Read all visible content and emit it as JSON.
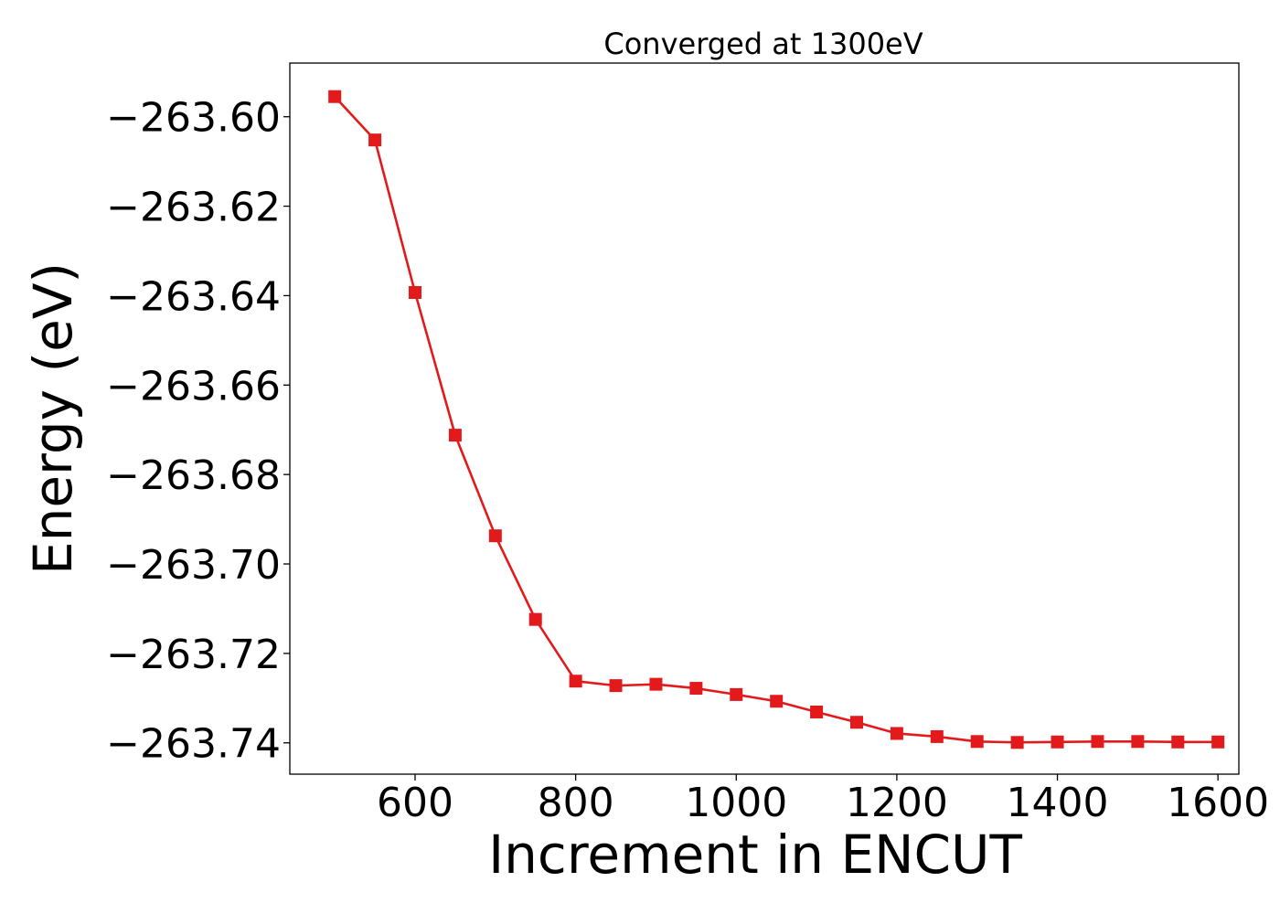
{
  "chart_data": {
    "type": "line",
    "title": "Converged at 1300eV",
    "xlabel": "Increment in ENCUT",
    "ylabel": "Energy (eV)",
    "xlim": [
      444,
      1626
    ],
    "ylim": [
      -263.747,
      -263.588
    ],
    "x_ticks": [
      600,
      800,
      1000,
      1200,
      1400,
      1600
    ],
    "x_tick_labels": [
      "600",
      "800",
      "1000",
      "1200",
      "1400",
      "1600"
    ],
    "y_ticks": [
      -263.6,
      -263.62,
      -263.64,
      -263.66,
      -263.68,
      -263.7,
      -263.72,
      -263.74
    ],
    "y_tick_labels": [
      "−263.60",
      "−263.62",
      "−263.64",
      "−263.66",
      "−263.68",
      "−263.70",
      "−263.72",
      "−263.74"
    ],
    "grid": false,
    "legend": "none",
    "series": [
      {
        "color": "#e31a1c",
        "marker": "square",
        "x": [
          500,
          550,
          600,
          650,
          700,
          750,
          800,
          850,
          900,
          950,
          1000,
          1050,
          1100,
          1150,
          1200,
          1250,
          1300,
          1350,
          1400,
          1450,
          1500,
          1550,
          1600
        ],
        "y": [
          -263.5955,
          -263.6052,
          -263.6393,
          -263.6712,
          -263.6937,
          -263.7124,
          -263.7262,
          -263.7272,
          -263.7269,
          -263.7278,
          -263.7292,
          -263.7307,
          -263.7331,
          -263.7354,
          -263.7379,
          -263.7386,
          -263.7397,
          -263.7399,
          -263.7398,
          -263.7397,
          -263.7397,
          -263.7398,
          -263.7398
        ]
      }
    ]
  }
}
